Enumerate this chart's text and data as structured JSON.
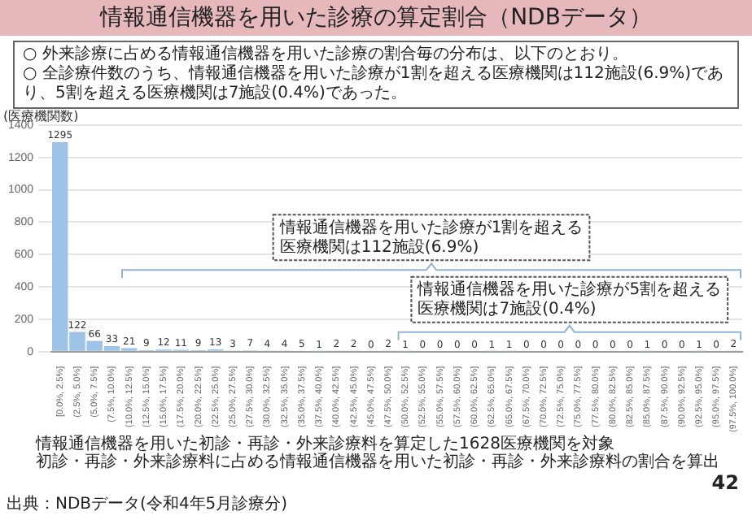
{
  "chart_data": {
    "type": "bar",
    "title": "情報通信機器を用いた診療の算定割合（NDBデータ）",
    "subtitle": "○ 外来診療に占める情報通信機器を用いた診療の割合毎の分布は、以下のとおり。\n○ 全診療件数のうち、情報通信機器を用いた診療が1割を超える医療機関は112施設(6.9%)であり、5割を超える医療機関は7施設(0.4%)であった。",
    "ylabel": "(医療機関数)",
    "categories": [
      "[0.0%, 2.5%]",
      "(2.5%, 5.0%]",
      "(5.0%, 7.5%]",
      "(7.5%, 10.0%]",
      "(10.0%, 12.5%]",
      "(12.5%, 15.0%]",
      "(15.0%, 17.5%]",
      "(17.5%, 20.0%]",
      "(20.0%, 22.5%]",
      "(22.5%, 25.0%]",
      "(25.0%, 27.5%]",
      "(27.5%, 30.0%]",
      "(30.0%, 32.5%]",
      "(32.5%, 35.0%]",
      "(35.0%, 37.5%]",
      "(37.5%, 40.0%]",
      "(40.0%, 42.5%]",
      "(42.5%, 45.0%]",
      "(45.0%, 47.5%]",
      "(47.5%, 50.0%]",
      "(50.0%, 52.5%]",
      "(52.5%, 55.0%]",
      "(55.0%, 57.5%]",
      "(57.5%, 60.0%]",
      "(60.0%, 62.5%]",
      "(62.5%, 65.0%]",
      "(65.0%, 67.5%]",
      "(67.5%, 70.0%]",
      "(70.0%, 72.5%]",
      "(72.5%, 75.0%]",
      "(75.0%, 77.5%]",
      "(77.5%, 80.0%]",
      "(80.0%, 82.5%]",
      "(82.5%, 85.0%]",
      "(85.0%, 87.5%]",
      "(87.5%, 90.0%]",
      "(90.0%, 92.5%]",
      "(92.5%, 95.0%]",
      "(95.0%, 97.5%]",
      "(97.5%, 100.0%]"
    ],
    "values": [
      1295,
      122,
      66,
      33,
      21,
      9,
      12,
      11,
      9,
      13,
      3,
      7,
      4,
      4,
      5,
      1,
      2,
      2,
      0,
      2,
      1,
      0,
      0,
      0,
      0,
      1,
      1,
      0,
      0,
      0,
      0,
      0,
      0,
      0,
      1,
      0,
      0,
      1,
      0,
      2
    ],
    "color": "#9dc3e6",
    "ylim": [
      0,
      1400
    ],
    "yticks": [
      0,
      200,
      400,
      600,
      800,
      1000,
      1200,
      1400
    ],
    "grid": "y",
    "data_labels": true,
    "legend": false,
    "annotations": [
      "情報通信機器を用いた診療が1割を超える医療機関は112施設(6.9%)",
      "情報通信機器を用いた診療が5割を超える医療機関は7施設(0.4%)",
      "情報通信機器を用いた初診・再診・外来診療料を算定した1628医療機関を対象",
      "初診・再診・外来診療料に占める情報通信機器を用いた初診・再診・外来診療料の割合を算出",
      "出典：NDBデータ(令和4年5月診療分)",
      "42"
    ]
  }
}
